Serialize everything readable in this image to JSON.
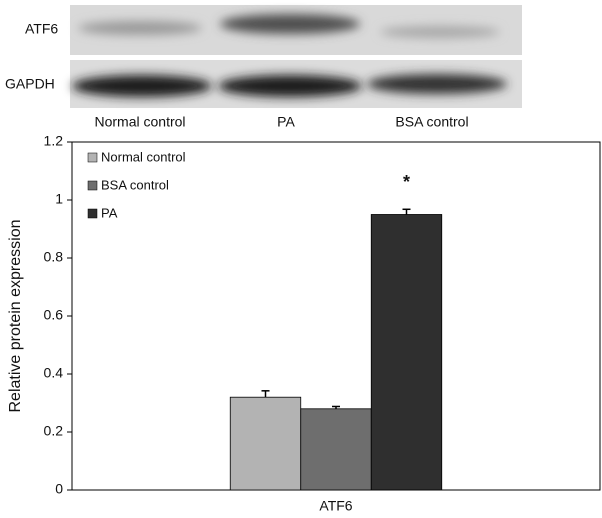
{
  "blot": {
    "rows": [
      "ATF6",
      "GAPDH"
    ],
    "lanes": [
      "Normal control",
      "PA",
      "BSA  control"
    ]
  },
  "chart_data": {
    "type": "bar",
    "ylabel": "Relative protein expression",
    "categories": [
      "ATF6"
    ],
    "series": [
      {
        "name": "Normal control",
        "color": "#b3b3b3",
        "values": [
          0.32
        ],
        "errors": [
          0.022
        ]
      },
      {
        "name": "BSA control",
        "color": "#6e6e6e",
        "values": [
          0.28
        ],
        "errors": [
          0.008
        ]
      },
      {
        "name": "PA",
        "color": "#2f2f2f",
        "values": [
          0.95
        ],
        "errors": [
          0.018
        ]
      }
    ],
    "annotation": "*",
    "ylim": [
      0,
      1.2
    ],
    "yticks": [
      0,
      0.2,
      0.4,
      0.6,
      0.8,
      1,
      1.2
    ]
  }
}
